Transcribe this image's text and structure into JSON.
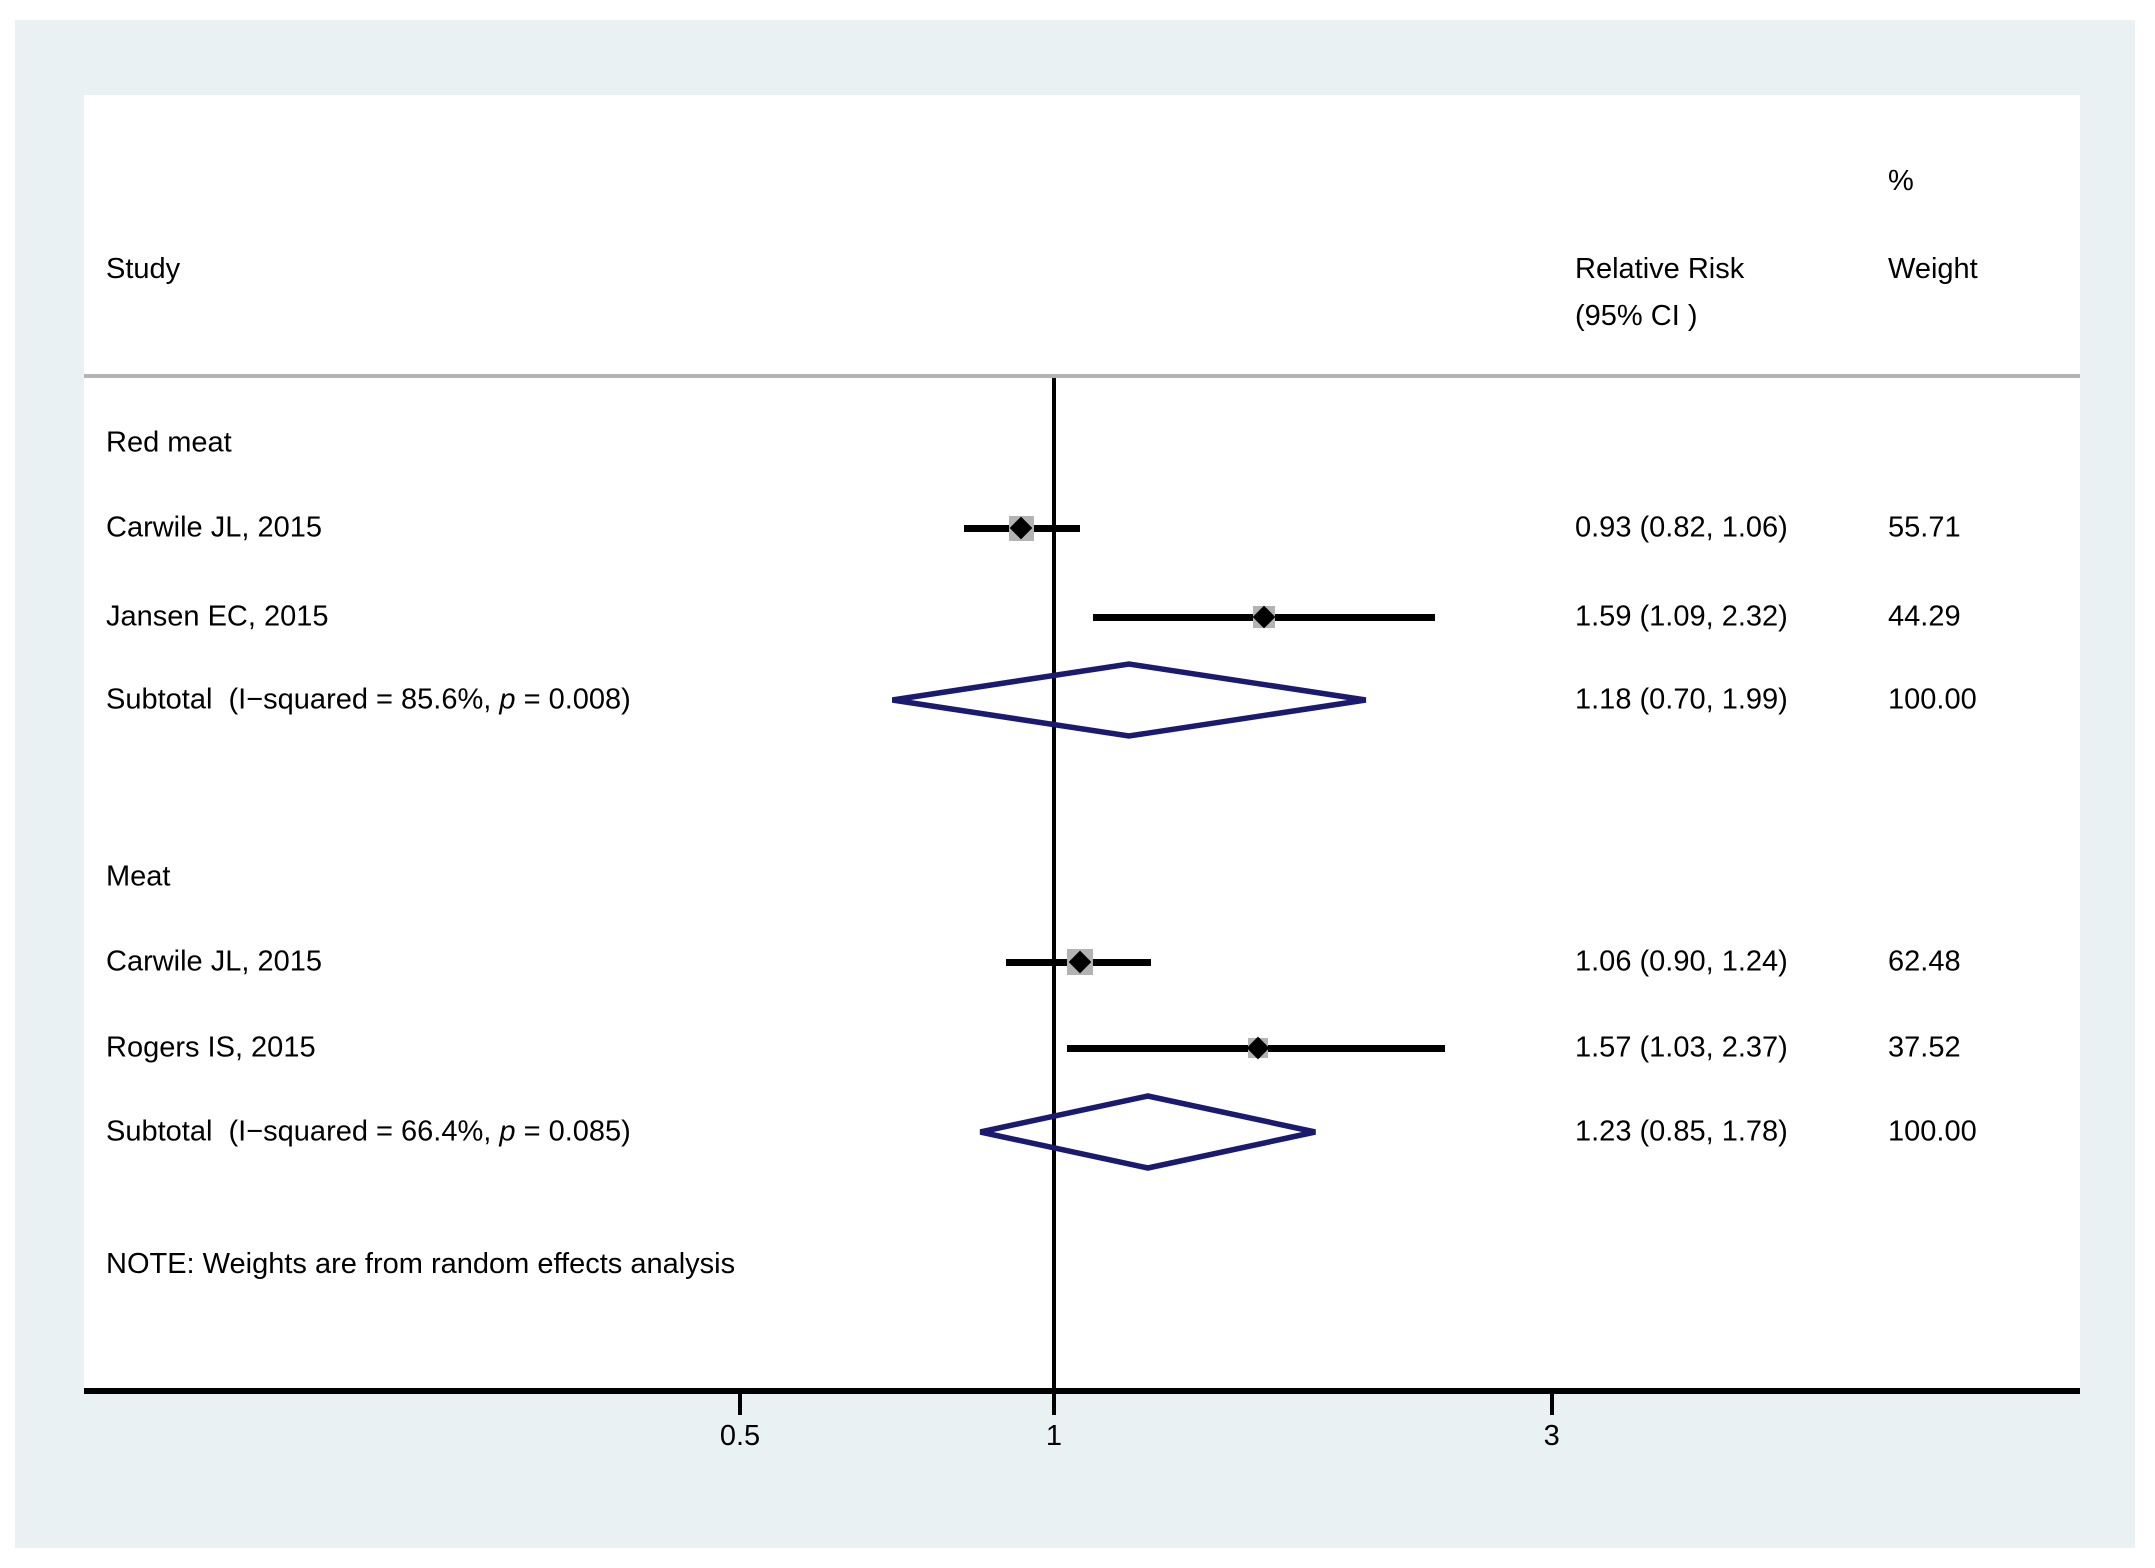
{
  "header": {
    "percent": "%",
    "study": "Study",
    "relative_risk": "Relative Risk",
    "ci": "(95% CI )",
    "weight": "Weight"
  },
  "note": "NOTE: Weights are from random effects analysis",
  "colors": {
    "background": "#eaf1f2",
    "panel": "#ffffff",
    "line": "#000000",
    "marker": "#000000",
    "weight_box": "#b3b3b3",
    "separator": "#b3b3b3",
    "diamond": "#1a1a70"
  },
  "chart_data": {
    "type": "forest",
    "x_scale": "log",
    "x_ticks": [
      "0.5",
      "1",
      "3"
    ],
    "x_tick_values": [
      0.5,
      1,
      3
    ],
    "ref_value": 1,
    "rows": [
      {
        "type": "group",
        "label": "Red meat"
      },
      {
        "type": "study",
        "label": "Carwile JL, 2015",
        "rr": 0.93,
        "ci_low": 0.82,
        "ci_high": 1.06,
        "rr_text": "0.93 (0.82, 1.06)",
        "weight": 55.71,
        "weight_text": "55.71"
      },
      {
        "type": "study",
        "label": "Jansen EC, 2015",
        "rr": 1.59,
        "ci_low": 1.09,
        "ci_high": 2.32,
        "rr_text": "1.59 (1.09, 2.32)",
        "weight": 44.29,
        "weight_text": "44.29"
      },
      {
        "type": "subtotal",
        "label_pre": "Subtotal  (I−squared = 85.6%, ",
        "label_p": "p",
        "label_post": " = 0.008)",
        "rr": 1.18,
        "ci_low": 0.7,
        "ci_high": 1.99,
        "rr_text": "1.18 (0.70, 1.99)",
        "weight_text": "100.00"
      },
      {
        "type": "group",
        "label": "Meat"
      },
      {
        "type": "study",
        "label": "Carwile JL, 2015",
        "rr": 1.06,
        "ci_low": 0.9,
        "ci_high": 1.24,
        "rr_text": "1.06 (0.90, 1.24)",
        "weight": 62.48,
        "weight_text": "62.48"
      },
      {
        "type": "study",
        "label": "Rogers IS, 2015",
        "rr": 1.57,
        "ci_low": 1.03,
        "ci_high": 2.37,
        "rr_text": "1.57 (1.03, 2.37)",
        "weight": 37.52,
        "weight_text": "37.52"
      },
      {
        "type": "subtotal",
        "label_pre": "Subtotal  (I−squared = 66.4%, ",
        "label_p": "p",
        "label_post": " = 0.085)",
        "rr": 1.23,
        "ci_low": 0.85,
        "ci_high": 1.78,
        "rr_text": "1.23 (0.85, 1.78)",
        "weight_text": "100.00"
      }
    ]
  }
}
